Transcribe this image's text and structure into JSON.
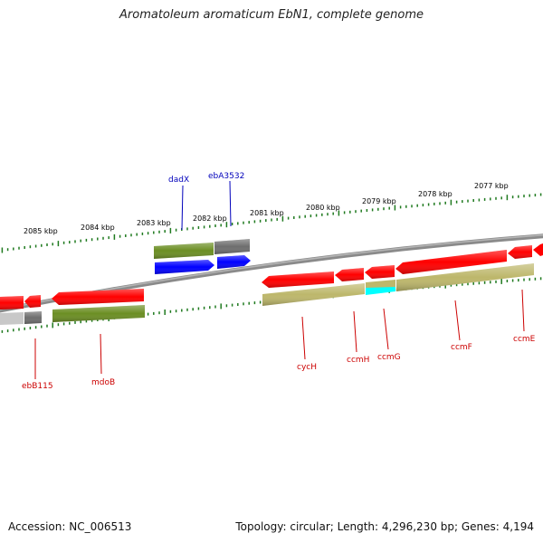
{
  "title": "Aromatoleum aromaticum EbN1, complete genome",
  "footer": {
    "accession": "Accession: NC_006513",
    "topology": "Topology: circular; Length: 4,296,230 bp; Genes: 4,194"
  },
  "colors": {
    "backbone": "#8a8a8a",
    "tick": "#1f7a1f",
    "label_top": "#0000bb",
    "label_bottom": "#cc0000",
    "gene_red": "#ff0000",
    "gene_green": "#6b8e23",
    "gene_blue": "#0000ff",
    "gene_gray": "#6e6e6e",
    "gene_khaki": "#bdb76b",
    "gene_cyan": "#00ffff",
    "gene_lightgray": "#c8c8c8"
  },
  "scale_labels": [
    "2085 kbp",
    "2084 kbp",
    "2083 kbp",
    "2082 kbp",
    "2081 kbp",
    "2080 kbp",
    "2079 kbp",
    "2078 kbp",
    "2077 kbp"
  ],
  "top_labels": [
    "dadX",
    "ebA3532"
  ],
  "bottom_labels": [
    "ebB115",
    "mdoB",
    "cycH",
    "ccmH",
    "ccmG",
    "ccmF",
    "ccmE"
  ]
}
